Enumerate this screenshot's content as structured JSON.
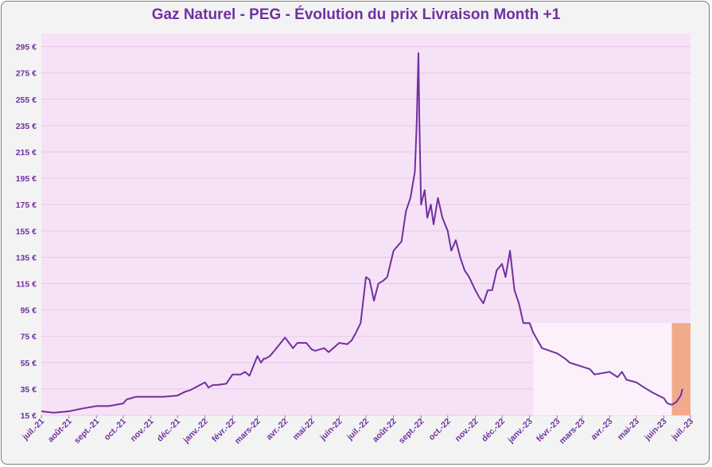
{
  "chart_data": {
    "type": "line",
    "title": "Gaz Naturel - PEG - Évolution du prix Livraison Month +1",
    "xlabel": "",
    "ylabel": "",
    "ylim": [
      15,
      305
    ],
    "y_ticks": [
      "15 €",
      "35 €",
      "55 €",
      "75 €",
      "95 €",
      "115 €",
      "135 €",
      "155 €",
      "175 €",
      "195 €",
      "215 €",
      "235 €",
      "255 €",
      "275 €",
      "295 €"
    ],
    "y_tick_values": [
      15,
      35,
      55,
      75,
      95,
      115,
      135,
      155,
      175,
      195,
      215,
      235,
      255,
      275,
      295
    ],
    "x_ticks": [
      "juil.-21",
      "août-21",
      "sept.-21",
      "oct.-21",
      "nov.-21",
      "déc.-21",
      "janv.-22",
      "févr.-22",
      "mars-22",
      "avr.-22",
      "mai-22",
      "juin-22",
      "juil.-22",
      "août-22",
      "sept.-22",
      "oct.-22",
      "nov.-22",
      "déc.-22",
      "janv.-23",
      "févr.-23",
      "mars-23",
      "avr.-23",
      "mai-23",
      "juin-23",
      "juil.-23"
    ],
    "grid": true,
    "legend": "none",
    "colors": {
      "line": "#7030a0",
      "plot_bg": "#f6e2f6",
      "highlight_light": "#fcf1fa",
      "highlight_orange": "#f2aa8c",
      "text": "#7030a0"
    },
    "shaded_regions": [
      {
        "from": "2023-01-05",
        "to": "2023-06-10",
        "y_top": 85,
        "color": "highlight_light"
      },
      {
        "from": "2023-06-10",
        "to": "2023-07-01",
        "y_top": 85,
        "color": "highlight_orange"
      }
    ],
    "series": [
      {
        "x": [
          "2021-07-01",
          "2021-07-15",
          "2021-08-01",
          "2021-08-15",
          "2021-09-01",
          "2021-09-15",
          "2021-10-01",
          "2021-10-05",
          "2021-10-10",
          "2021-10-15",
          "2021-11-01",
          "2021-11-15",
          "2021-12-01",
          "2021-12-10",
          "2021-12-15",
          "2022-01-01",
          "2022-01-05",
          "2022-01-10",
          "2022-01-15",
          "2022-01-25",
          "2022-02-01",
          "2022-02-10",
          "2022-02-15",
          "2022-02-20",
          "2022-03-01",
          "2022-03-05",
          "2022-03-08",
          "2022-03-10",
          "2022-03-15",
          "2022-03-20",
          "2022-04-01",
          "2022-04-10",
          "2022-04-15",
          "2022-04-20",
          "2022-04-25",
          "2022-05-01",
          "2022-05-05",
          "2022-05-15",
          "2022-05-20",
          "2022-06-01",
          "2022-06-10",
          "2022-06-15",
          "2022-06-20",
          "2022-06-25",
          "2022-07-01",
          "2022-07-05",
          "2022-07-10",
          "2022-07-15",
          "2022-07-20",
          "2022-07-25",
          "2022-08-01",
          "2022-08-10",
          "2022-08-15",
          "2022-08-20",
          "2022-08-25",
          "2022-08-27",
          "2022-08-29",
          "2022-08-30",
          "2022-09-01",
          "2022-09-05",
          "2022-09-08",
          "2022-09-12",
          "2022-09-15",
          "2022-09-20",
          "2022-09-25",
          "2022-10-01",
          "2022-10-05",
          "2022-10-10",
          "2022-10-15",
          "2022-10-20",
          "2022-10-25",
          "2022-11-01",
          "2022-11-05",
          "2022-11-10",
          "2022-11-15",
          "2022-11-20",
          "2022-11-25",
          "2022-12-01",
          "2022-12-05",
          "2022-12-10",
          "2022-12-15",
          "2022-12-20",
          "2022-12-25",
          "2023-01-01",
          "2023-01-05",
          "2023-01-10",
          "2023-01-15",
          "2023-02-01",
          "2023-02-10",
          "2023-02-15",
          "2023-03-01",
          "2023-03-10",
          "2023-03-15",
          "2023-04-01",
          "2023-04-10",
          "2023-04-15",
          "2023-04-20",
          "2023-05-01",
          "2023-05-10",
          "2023-05-20",
          "2023-06-01",
          "2023-06-05",
          "2023-06-10",
          "2023-06-15",
          "2023-06-20",
          "2023-06-22"
        ],
        "values": [
          18,
          17,
          18,
          20,
          22,
          22,
          24,
          27,
          28,
          29,
          29,
          29,
          30,
          33,
          34,
          40,
          36,
          38,
          38,
          39,
          46,
          46,
          48,
          45,
          60,
          55,
          58,
          58,
          60,
          64,
          74,
          66,
          70,
          70,
          70,
          65,
          64,
          66,
          63,
          70,
          69,
          72,
          78,
          85,
          120,
          118,
          102,
          115,
          117,
          120,
          140,
          147,
          170,
          180,
          200,
          235,
          290,
          240,
          175,
          186,
          165,
          175,
          160,
          180,
          165,
          155,
          140,
          148,
          135,
          125,
          120,
          110,
          105,
          100,
          110,
          110,
          125,
          130,
          120,
          140,
          110,
          100,
          85,
          85,
          78,
          72,
          66,
          62,
          58,
          55,
          52,
          50,
          46,
          48,
          44,
          48,
          42,
          40,
          36,
          32,
          28,
          24,
          23,
          25,
          30,
          35
        ]
      }
    ]
  }
}
